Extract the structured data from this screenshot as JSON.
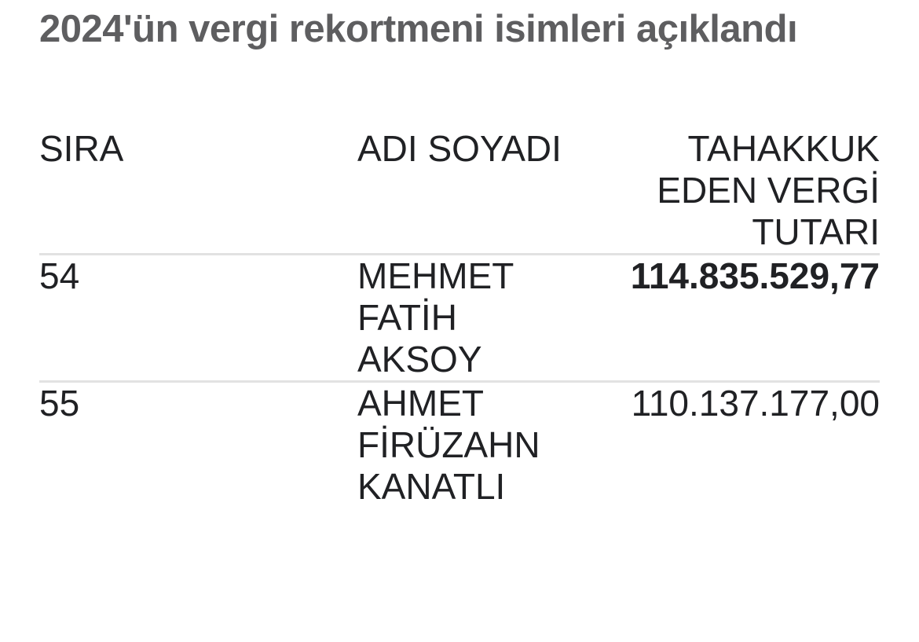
{
  "page": {
    "title": "2024'ün vergi rekortmeni isimleri açıklandı"
  },
  "table": {
    "columns": [
      {
        "key": "rank",
        "label": "SIRA"
      },
      {
        "key": "name",
        "label": "ADI SOYADI"
      },
      {
        "key": "amount",
        "label": "TAHAKKUK EDEN VERGİ TUTARI"
      }
    ],
    "rows": [
      {
        "rank": "54",
        "name": "MEHMET FATİH AKSOY",
        "amount": "114.835.529,77",
        "amount_emphasis": "bold"
      },
      {
        "rank": "55",
        "name": "AHMET FİRÜZAHN KANATLI",
        "amount": "110.137.177,00",
        "amount_emphasis": "regular"
      }
    ]
  },
  "colors": {
    "title_text": "#5e5e60",
    "body_text": "#202124",
    "divider": "#e2e2e2",
    "background": "#ffffff"
  }
}
